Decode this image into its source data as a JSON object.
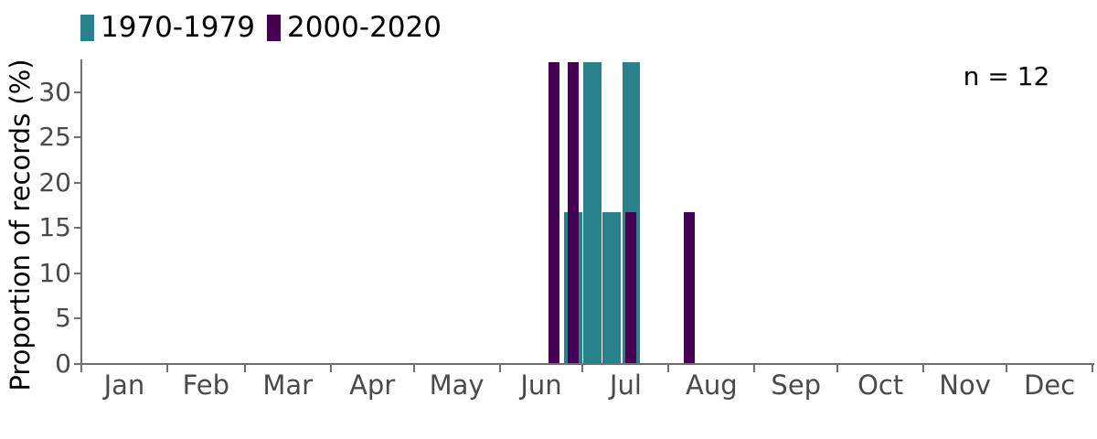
{
  "figure": {
    "ylabel": "Proportion of records (%)",
    "n_label": "n = 12",
    "background": "#ffffff"
  },
  "legend": {
    "items": [
      {
        "label": "1970-1979",
        "color": "#29818c"
      },
      {
        "label": "2000-2020",
        "color": "#440154"
      }
    ]
  },
  "axes": {
    "y_ticks": [
      0,
      5,
      10,
      15,
      20,
      25,
      30
    ],
    "x_month_labels": [
      "Jan",
      "Feb",
      "Mar",
      "Apr",
      "May",
      "Jun",
      "Jul",
      "Aug",
      "Sep",
      "Oct",
      "Nov",
      "Dec"
    ],
    "x_month_boundary_days": [
      0,
      31,
      59,
      90,
      120,
      151,
      181,
      212,
      243,
      273,
      304,
      334,
      365
    ]
  },
  "chart_data": {
    "type": "bar",
    "subtype": "weekly-binned histogram over a Jan-Dec date axis, two periods overlaid (purple drawn narrower on top of teal)",
    "title": "",
    "xlabel": "",
    "ylabel": "Proportion of records (%)",
    "ylim": [
      0,
      33.5
    ],
    "yticks": [
      0,
      5,
      10,
      15,
      20,
      25,
      30
    ],
    "x_axis_months": [
      "Jan",
      "Feb",
      "Mar",
      "Apr",
      "May",
      "Jun",
      "Jul",
      "Aug",
      "Sep",
      "Oct",
      "Nov",
      "Dec"
    ],
    "grid": "off",
    "legend_position": "top-left",
    "annotation": "n = 12",
    "bin_width_days": 7,
    "series": [
      {
        "name": "1970-1979",
        "color": "#29818c",
        "bars": [
          {
            "bin": "Jun 24-30",
            "start_day": 174,
            "end_day": 181,
            "value": 16.7
          },
          {
            "bin": "Jul 1-7",
            "start_day": 181,
            "end_day": 188,
            "value": 33.3
          },
          {
            "bin": "Jul 8-14",
            "start_day": 188,
            "end_day": 195,
            "value": 16.7
          },
          {
            "bin": "Jul 15-21",
            "start_day": 195,
            "end_day": 202,
            "value": 33.3
          }
        ]
      },
      {
        "name": "2000-2020",
        "color": "#440154",
        "bars": [
          {
            "bin": "Jun 17-23",
            "start_day": 167,
            "end_day": 174,
            "value": 33.3
          },
          {
            "bin": "Jun 24-30",
            "start_day": 174,
            "end_day": 181,
            "value": 33.3
          },
          {
            "bin": "Jul 15-21",
            "start_day": 195,
            "end_day": 202,
            "value": 16.7
          },
          {
            "bin": "Aug 5-11",
            "start_day": 216,
            "end_day": 223,
            "value": 16.7
          }
        ]
      }
    ],
    "colors": {
      "axis": "#6e6e6e",
      "tick_label_grey": "#4a4a4a",
      "text_black": "#000000"
    }
  }
}
